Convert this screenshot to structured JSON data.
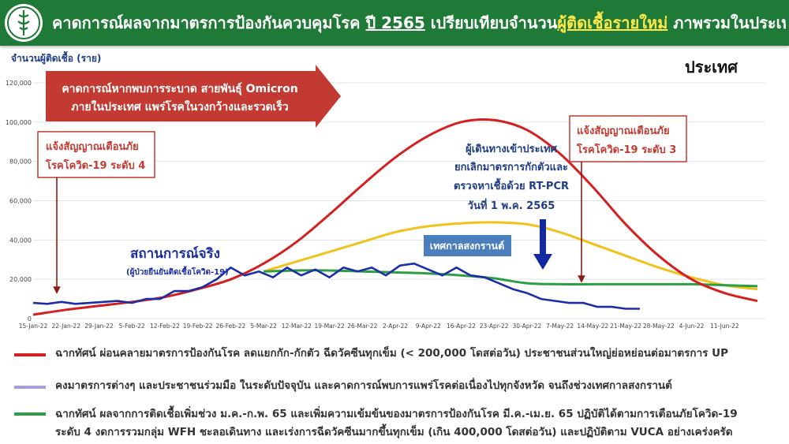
{
  "header": {
    "title_part1": "คาดการณ์ผลจากมาตรการป้องกันควบคุมโรค ",
    "title_year": "ปี 2565",
    "title_part2": " เปรียบเทียบจำนวน",
    "title_highlight": "ผู้ติดเชื้อรายใหม่",
    "title_part3": " ภาพรวมในประเทศ"
  },
  "colors": {
    "header_bg": "#1f7a37",
    "red": "#d42020",
    "yellow": "#f1c21b",
    "green": "#2e9e46",
    "blue": "#1c2ea6",
    "dark_red": "#8b1a1a",
    "purple": "#a89be0"
  },
  "chart_data": {
    "type": "line",
    "ylabel": "จำนวนผู้ติดเชื้อ (ราย)",
    "corner_label": "ประเทศ",
    "ylim": [
      0,
      120000
    ],
    "yticks": [
      "0",
      "20,000",
      "40,000",
      "60,000",
      "80,000",
      "100,000",
      "120,000"
    ],
    "xticks": [
      "15-Jan-22",
      "22-Jan-22",
      "29-Jan-22",
      "5-Feb-22",
      "12-Feb-22",
      "19-Feb-22",
      "26-Feb-22",
      "5-Mar-22",
      "12-Mar-22",
      "19-Mar-22",
      "26-Mar-22",
      "2-Apr-22",
      "9-Apr-22",
      "16-Apr-22",
      "23-Apr-22",
      "30-Apr-22",
      "7-May-22",
      "14-May-22",
      "21-May-22",
      "28-May-22",
      "4-Jun-22",
      "11-Jun-22"
    ],
    "grid": true,
    "series": [
      {
        "key": "red",
        "x": [
          0,
          7,
          14,
          21,
          28,
          35,
          42,
          49,
          56,
          63,
          70,
          77,
          84,
          91,
          98,
          105,
          112,
          119,
          126,
          133,
          140,
          147,
          154
        ],
        "y": [
          2000,
          4500,
          6500,
          8500,
          11000,
          15000,
          20000,
          28000,
          39000,
          53000,
          68000,
          82000,
          93000,
          100000,
          101000,
          96000,
          84000,
          67000,
          48000,
          32000,
          20000,
          13000,
          9000
        ]
      },
      {
        "key": "yellow",
        "x": [
          49,
          56,
          63,
          70,
          77,
          84,
          91,
          98,
          105,
          112,
          119,
          126,
          133,
          140,
          147,
          154
        ],
        "y": [
          24000,
          29000,
          34000,
          39000,
          44000,
          47000,
          48500,
          49000,
          48000,
          44000,
          38000,
          32000,
          26000,
          21000,
          17000,
          15000
        ]
      },
      {
        "key": "green",
        "x": [
          49,
          56,
          63,
          70,
          77,
          84,
          91,
          98,
          105,
          112,
          119,
          126,
          133,
          140,
          147,
          154
        ],
        "y": [
          24000,
          24500,
          24500,
          24000,
          23500,
          23000,
          22000,
          20500,
          18000,
          17500,
          17500,
          17500,
          17500,
          17500,
          17000,
          16500
        ]
      },
      {
        "key": "blue",
        "x": [
          0,
          3,
          6,
          9,
          12,
          15,
          18,
          21,
          24,
          27,
          30,
          33,
          36,
          39,
          42,
          45,
          48,
          51,
          54,
          57,
          60,
          63,
          66,
          69,
          72,
          75,
          78,
          81,
          84,
          87,
          90,
          93,
          96,
          99,
          102,
          105,
          108,
          111,
          114,
          117,
          120,
          123,
          126,
          129
        ],
        "y": [
          8000,
          7500,
          8500,
          7500,
          8000,
          8500,
          9000,
          8000,
          10000,
          10000,
          14000,
          14000,
          16000,
          20000,
          26000,
          22000,
          24000,
          21000,
          26000,
          22000,
          25000,
          21000,
          26000,
          24000,
          26000,
          22000,
          27000,
          28000,
          25000,
          22000,
          26000,
          22000,
          21000,
          18000,
          15000,
          13000,
          10000,
          9000,
          8000,
          8000,
          6000,
          6000,
          5000,
          5000
        ]
      }
    ],
    "annotations": {
      "omicron_line1": "คาดการณ์หากพบการระบาด สายพันธุ์ Omicron",
      "omicron_line2": "ภายในประเทศ แพร่โรคในวงกว้างและรวดเร็ว",
      "alert4_line1": "แจ้งสัญญาณเตือนภัย",
      "alert4_line2": "โรคโควิด-19 ระดับ 4",
      "travel_line1": "ผู้เดินทางเข้าประเทศ",
      "travel_line2": "ยกเลิกมาตรการกักตัวและ",
      "travel_line3": "ตรวจหาเชื้อด้วย RT-PCR",
      "travel_line4": "วันที่ 1 พ.ค. 2565",
      "alert3_line1": "แจ้งสัญญาณเตือนภัย",
      "alert3_line2": "โรคโควิด-19 ระดับ 3",
      "songkran": "เทศกาลสงกรานต์",
      "actual": "สถานการณ์จริง",
      "actual_sub": "(ผู้ป่วยยืนยันติดเชื้อโควิด-19)"
    }
  },
  "legend": [
    {
      "key": "red",
      "line1": "ฉากทัศน์ ผ่อนคลายมาตรการป้องกันโรค ลดแยกกัก-กักตัว ฉีดวัคซีนทุกเข็ม (< 200,000 โดสต่อวัน) ประชาชนส่วนใหญ่ย่อหย่อนต่อมาตรการ UP",
      "line2": ""
    },
    {
      "key": "purple",
      "line1": "คงมาตรการต่างๆ และประชาชนร่วมมือ ในระดับปัจจุบัน และคาดการณ์พบการแพร่โรคต่อเนื่องไปทุกจังหวัด จนถึงช่วงเทศกาลสงกรานต์",
      "line2": ""
    },
    {
      "key": "green",
      "line1": "ฉากทัศน์ ผลจากการติดเชื้อเพิ่มช่วง ม.ค.-ก.พ. 65 และเพิ่มความเข้มข้นของมาตรการป้องกันโรค มี.ค.-เม.ย. 65 ปฏิบัติได้ตามการเตือนภัยโควิด-19",
      "line2": "ระดับ 4 งดการรวมกลุ่ม WFH ชะลอเดินทาง และเร่งการฉีดวัคซีนมากขึ้นทุกเข็ม (เกิน 400,000 โดสต่อวัน) และปฏิบัติตาม VUCA อย่างเคร่งครัด"
    }
  ]
}
